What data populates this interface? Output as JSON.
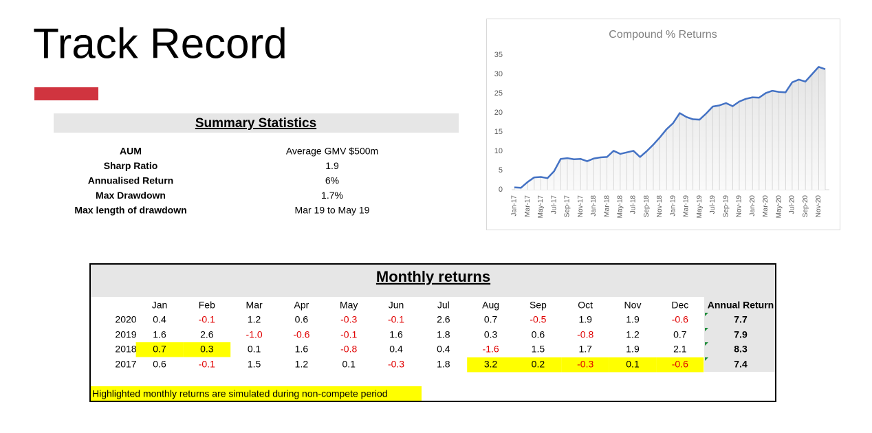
{
  "title": "Track Record",
  "summary": {
    "heading": "Summary Statistics",
    "rows": [
      [
        "AUM",
        "Average GMV $500m"
      ],
      [
        "Sharp Ratio",
        "1.9"
      ],
      [
        "Annualised Return",
        "6%"
      ],
      [
        "Max Drawdown",
        "1.7%"
      ],
      [
        "Max length of drawdown",
        "Mar 19 to May 19"
      ]
    ]
  },
  "chart_data": {
    "type": "line",
    "title": "Compound % Returns",
    "categories": [
      "Jan-17",
      null,
      "Mar-17",
      null,
      "May-17",
      null,
      "Jul-17",
      null,
      "Sep-17",
      null,
      "Nov-17",
      null,
      "Jan-18",
      null,
      "Mar-18",
      null,
      "May-18",
      null,
      "Jul-18",
      null,
      "Sep-18",
      null,
      "Nov-18",
      null,
      "Jan-19",
      null,
      "Mar-19",
      null,
      "May-19",
      null,
      "Jul-19",
      null,
      "Sep-19",
      null,
      "Nov-19",
      null,
      "Jan-20",
      null,
      "Mar-20",
      null,
      "May-20",
      null,
      "Jul-20",
      null,
      "Sep-20",
      null,
      "Nov-20",
      null
    ],
    "values": [
      0.6,
      0.5,
      2.0,
      3.2,
      3.3,
      3.0,
      4.8,
      8.0,
      8.2,
      7.9,
      8.0,
      7.4,
      8.1,
      8.4,
      8.5,
      10.1,
      9.3,
      9.7,
      10.1,
      8.5,
      10.0,
      11.7,
      13.6,
      15.7,
      17.3,
      19.9,
      18.9,
      18.3,
      18.2,
      19.8,
      21.6,
      21.9,
      22.5,
      21.7,
      22.9,
      23.6,
      24.0,
      23.9,
      25.1,
      25.7,
      25.4,
      25.3,
      27.9,
      28.6,
      28.1,
      30.0,
      31.9,
      31.3
    ],
    "color": "#4472c4",
    "ylim": [
      0,
      35
    ],
    "yticks": [
      0,
      5,
      10,
      15,
      20,
      25,
      30,
      35
    ]
  },
  "monthly": {
    "heading": "Monthly returns",
    "columns": [
      "Jan",
      "Feb",
      "Mar",
      "Apr",
      "May",
      "Jun",
      "Jul",
      "Aug",
      "Sep",
      "Oct",
      "Nov",
      "Dec",
      "Annual Return"
    ],
    "rows": [
      {
        "year": "2020",
        "values": [
          "0.4",
          "-0.1",
          "1.2",
          "0.6",
          "-0.3",
          "-0.1",
          "2.6",
          "0.7",
          "-0.5",
          "1.9",
          "1.9",
          "-0.6"
        ],
        "annual": "7.7",
        "highlighted": []
      },
      {
        "year": "2019",
        "values": [
          "1.6",
          "2.6",
          "-1.0",
          "-0.6",
          "-0.1",
          "1.6",
          "1.8",
          "0.3",
          "0.6",
          "-0.8",
          "1.2",
          "0.7"
        ],
        "annual": "7.9",
        "highlighted": []
      },
      {
        "year": "2018",
        "values": [
          "0.7",
          "0.3",
          "0.1",
          "1.6",
          "-0.8",
          "0.4",
          "0.4",
          "-1.6",
          "1.5",
          "1.7",
          "1.9",
          "2.1"
        ],
        "annual": "8.3",
        "highlighted": [
          0,
          1
        ]
      },
      {
        "year": "2017",
        "values": [
          "0.6",
          "-0.1",
          "1.5",
          "1.2",
          "0.1",
          "-0.3",
          "1.8",
          "3.2",
          "0.2",
          "-0.3",
          "0.1",
          "-0.6"
        ],
        "annual": "7.4",
        "highlighted": [
          7,
          8,
          9,
          10,
          11
        ]
      }
    ],
    "highlight_color": "#ffff00",
    "note": "Highlighted monthly returns are simulated during non-compete period"
  }
}
